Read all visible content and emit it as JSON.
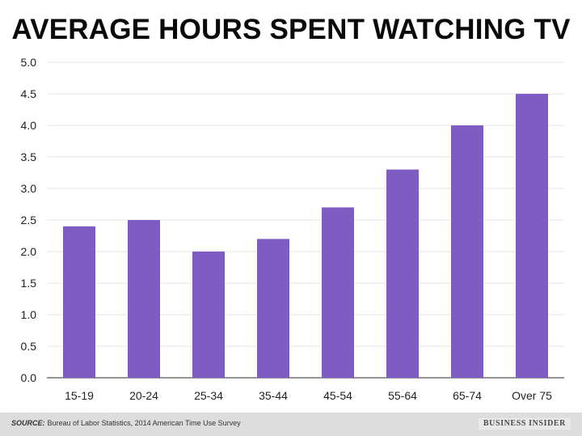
{
  "chart_data": {
    "type": "bar",
    "title": "AVERAGE HOURS SPENT WATCHING TV",
    "categories": [
      "15-19",
      "20-24",
      "25-34",
      "35-44",
      "45-54",
      "55-64",
      "65-74",
      "Over 75"
    ],
    "values": [
      2.4,
      2.5,
      2.0,
      2.2,
      2.7,
      3.3,
      4.0,
      4.5
    ],
    "ylim": [
      0,
      5
    ],
    "yticks": [
      "0.0",
      "0.5",
      "1.0",
      "1.5",
      "2.0",
      "2.5",
      "3.0",
      "3.5",
      "4.0",
      "4.5",
      "5.0"
    ],
    "xlabel": "",
    "ylabel": "",
    "grid": true,
    "bar_color": "#7f5cc4"
  },
  "footer": {
    "source_label": "SOURCE:",
    "source_text": "Bureau of Labor Statistics, 2014 American Time Use Survey",
    "brand": "BUSINESS INSIDER"
  }
}
